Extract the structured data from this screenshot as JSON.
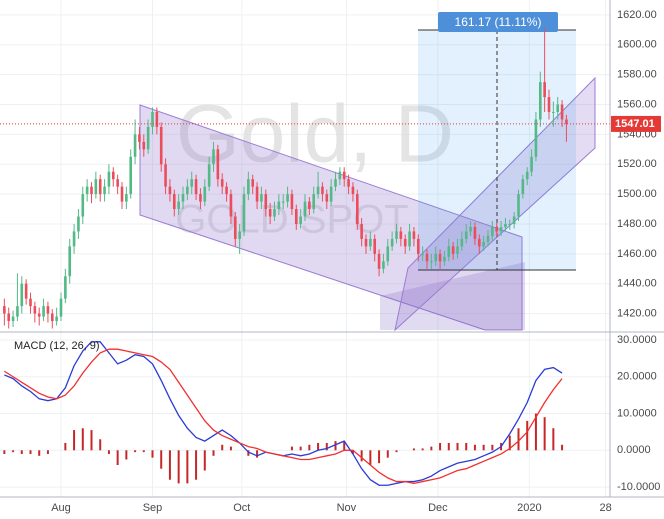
{
  "chart_data": [
    {
      "type": "candlestick",
      "title": "Gold, D",
      "subtitle": "GOLD SPOT",
      "annotation": "161.17 (11.11%)",
      "up_color": "#53b987",
      "down_color": "#eb4d5c",
      "last_price": 1547.01,
      "last_price_color": "#e53935",
      "xlim": [
        -1,
        139
      ],
      "xticks": [
        {
          "value": 13,
          "label": "Aug"
        },
        {
          "value": 34,
          "label": "Sep"
        },
        {
          "value": 54.5,
          "label": "Oct"
        },
        {
          "value": 78.5,
          "label": "Nov"
        },
        {
          "value": 99.5,
          "label": "Dec"
        },
        {
          "value": 120.5,
          "label": "2020"
        },
        {
          "value": 138,
          "label": "28"
        }
      ],
      "ylim": [
        1409,
        1630
      ],
      "yticks": [
        {
          "value": 1420,
          "label": "1420.00"
        },
        {
          "value": 1440,
          "label": "1440.00"
        },
        {
          "value": 1460,
          "label": "1460.00"
        },
        {
          "value": 1480,
          "label": "1480.00"
        },
        {
          "value": 1500,
          "label": "1500.00"
        },
        {
          "value": 1520,
          "label": "1520.00"
        },
        {
          "value": 1540,
          "label": "1540.00"
        },
        {
          "value": 1560,
          "label": "1560.00"
        },
        {
          "value": 1580,
          "label": "1580.00"
        },
        {
          "value": 1600,
          "label": "1600.00"
        },
        {
          "value": 1620,
          "label": "1620.00"
        }
      ],
      "grid": true,
      "ohlc": [
        [
          1425,
          1430,
          1412,
          1420
        ],
        [
          1420,
          1424,
          1410,
          1415
        ],
        [
          1415,
          1422,
          1411,
          1418
        ],
        [
          1418,
          1447,
          1415,
          1425
        ],
        [
          1425,
          1445,
          1420,
          1440
        ],
        [
          1440,
          1443,
          1426,
          1430
        ],
        [
          1430,
          1434,
          1420,
          1425
        ],
        [
          1425,
          1428,
          1414,
          1420
        ],
        [
          1420,
          1424,
          1412,
          1418
        ],
        [
          1418,
          1430,
          1415,
          1425
        ],
        [
          1425,
          1428,
          1414,
          1420
        ],
        [
          1420,
          1423,
          1410,
          1415
        ],
        [
          1415,
          1424,
          1412,
          1418
        ],
        [
          1418,
          1434,
          1415,
          1430
        ],
        [
          1430,
          1450,
          1427,
          1445
        ],
        [
          1445,
          1470,
          1440,
          1465
        ],
        [
          1465,
          1480,
          1460,
          1475
        ],
        [
          1475,
          1490,
          1470,
          1485
        ],
        [
          1485,
          1505,
          1480,
          1500
        ],
        [
          1500,
          1510,
          1495,
          1505
        ],
        [
          1505,
          1508,
          1494,
          1500
        ],
        [
          1500,
          1515,
          1497,
          1510
        ],
        [
          1510,
          1513,
          1495,
          1500
        ],
        [
          1500,
          1510,
          1495,
          1505
        ],
        [
          1505,
          1520,
          1500,
          1515
        ],
        [
          1515,
          1518,
          1505,
          1510
        ],
        [
          1510,
          1513,
          1500,
          1505
        ],
        [
          1505,
          1508,
          1490,
          1495
        ],
        [
          1495,
          1505,
          1490,
          1500
        ],
        [
          1500,
          1530,
          1497,
          1525
        ],
        [
          1525,
          1550,
          1520,
          1540
        ],
        [
          1540,
          1545,
          1530,
          1535
        ],
        [
          1535,
          1540,
          1525,
          1530
        ],
        [
          1530,
          1550,
          1527,
          1545
        ],
        [
          1545,
          1558,
          1540,
          1555
        ],
        [
          1555,
          1558,
          1540,
          1545
        ],
        [
          1545,
          1548,
          1515,
          1520
        ],
        [
          1520,
          1524,
          1500,
          1505
        ],
        [
          1505,
          1510,
          1495,
          1500
        ],
        [
          1500,
          1503,
          1485,
          1490
        ],
        [
          1490,
          1500,
          1486,
          1495
        ],
        [
          1495,
          1505,
          1490,
          1500
        ],
        [
          1500,
          1510,
          1496,
          1505
        ],
        [
          1505,
          1515,
          1500,
          1510
        ],
        [
          1510,
          1513,
          1496,
          1500
        ],
        [
          1500,
          1504,
          1490,
          1495
        ],
        [
          1495,
          1510,
          1492,
          1505
        ],
        [
          1505,
          1525,
          1502,
          1520
        ],
        [
          1520,
          1535,
          1515,
          1530
        ],
        [
          1530,
          1533,
          1505,
          1510
        ],
        [
          1510,
          1514,
          1500,
          1505
        ],
        [
          1505,
          1508,
          1495,
          1500
        ],
        [
          1500,
          1503,
          1480,
          1485
        ],
        [
          1485,
          1488,
          1465,
          1470
        ],
        [
          1470,
          1480,
          1460,
          1475
        ],
        [
          1475,
          1505,
          1472,
          1500
        ],
        [
          1500,
          1515,
          1496,
          1510
        ],
        [
          1510,
          1513,
          1500,
          1505
        ],
        [
          1505,
          1508,
          1490,
          1495
        ],
        [
          1495,
          1505,
          1490,
          1500
        ],
        [
          1500,
          1503,
          1485,
          1490
        ],
        [
          1490,
          1494,
          1480,
          1485
        ],
        [
          1485,
          1495,
          1482,
          1490
        ],
        [
          1490,
          1500,
          1486,
          1495
        ],
        [
          1495,
          1500,
          1490,
          1495
        ],
        [
          1495,
          1505,
          1491,
          1500
        ],
        [
          1500,
          1503,
          1486,
          1490
        ],
        [
          1490,
          1493,
          1476,
          1480
        ],
        [
          1480,
          1490,
          1477,
          1485
        ],
        [
          1485,
          1500,
          1482,
          1495
        ],
        [
          1495,
          1498,
          1486,
          1490
        ],
        [
          1490,
          1505,
          1487,
          1500
        ],
        [
          1500,
          1515,
          1497,
          1505
        ],
        [
          1505,
          1508,
          1495,
          1500
        ],
        [
          1500,
          1503,
          1490,
          1495
        ],
        [
          1495,
          1510,
          1492,
          1505
        ],
        [
          1505,
          1515,
          1502,
          1510
        ],
        [
          1510,
          1518,
          1506,
          1515
        ],
        [
          1515,
          1518,
          1505,
          1510
        ],
        [
          1510,
          1513,
          1500,
          1505
        ],
        [
          1505,
          1508,
          1495,
          1500
        ],
        [
          1500,
          1503,
          1476,
          1480
        ],
        [
          1480,
          1484,
          1465,
          1470
        ],
        [
          1470,
          1473,
          1460,
          1465
        ],
        [
          1465,
          1475,
          1462,
          1470
        ],
        [
          1470,
          1473,
          1455,
          1460
        ],
        [
          1460,
          1463,
          1445,
          1450
        ],
        [
          1450,
          1460,
          1447,
          1455
        ],
        [
          1455,
          1470,
          1452,
          1465
        ],
        [
          1465,
          1475,
          1462,
          1470
        ],
        [
          1470,
          1480,
          1467,
          1475
        ],
        [
          1475,
          1478,
          1465,
          1470
        ],
        [
          1470,
          1473,
          1460,
          1465
        ],
        [
          1465,
          1480,
          1462,
          1475
        ],
        [
          1475,
          1478,
          1465,
          1470
        ],
        [
          1470,
          1473,
          1455,
          1460
        ],
        [
          1460,
          1465,
          1455,
          1460
        ],
        [
          1460,
          1463,
          1450,
          1455
        ],
        [
          1455,
          1460,
          1450,
          1455
        ],
        [
          1455,
          1465,
          1452,
          1460
        ],
        [
          1460,
          1463,
          1450,
          1455
        ],
        [
          1455,
          1462,
          1452,
          1458
        ],
        [
          1458,
          1470,
          1455,
          1465
        ],
        [
          1465,
          1468,
          1456,
          1460
        ],
        [
          1460,
          1470,
          1457,
          1465
        ],
        [
          1465,
          1475,
          1462,
          1470
        ],
        [
          1470,
          1480,
          1467,
          1475
        ],
        [
          1475,
          1482,
          1472,
          1478
        ],
        [
          1478,
          1481,
          1466,
          1470
        ],
        [
          1470,
          1473,
          1460,
          1465
        ],
        [
          1465,
          1472,
          1462,
          1468
        ],
        [
          1468,
          1476,
          1465,
          1472
        ],
        [
          1472,
          1482,
          1469,
          1478
        ],
        [
          1478,
          1481,
          1471,
          1475
        ],
        [
          1475,
          1482,
          1472,
          1478
        ],
        [
          1478,
          1484,
          1475,
          1480
        ],
        [
          1480,
          1483,
          1476,
          1480
        ],
        [
          1480,
          1488,
          1477,
          1485
        ],
        [
          1485,
          1503,
          1482,
          1500
        ],
        [
          1500,
          1513,
          1497,
          1510
        ],
        [
          1510,
          1518,
          1506,
          1515
        ],
        [
          1515,
          1530,
          1512,
          1525
        ],
        [
          1525,
          1555,
          1522,
          1550
        ],
        [
          1550,
          1582,
          1545,
          1575
        ],
        [
          1575,
          1611,
          1555,
          1565
        ],
        [
          1565,
          1570,
          1550,
          1555
        ],
        [
          1555,
          1562,
          1545,
          1555
        ],
        [
          1555,
          1565,
          1550,
          1560
        ],
        [
          1560,
          1563,
          1545,
          1550
        ],
        [
          1550,
          1553,
          1535,
          1547
        ]
      ]
    },
    {
      "type": "macd",
      "title": "MACD (12, 26, 9)",
      "ylim": [
        -12.7,
        31.9
      ],
      "yticks": [
        {
          "value": 30,
          "label": "30.0000"
        },
        {
          "value": 20,
          "label": "20.0000"
        },
        {
          "value": 10,
          "label": "10.0000"
        },
        {
          "value": 0,
          "label": "0.0000"
        },
        {
          "value": -10,
          "label": "-10.0000"
        }
      ],
      "x": [
        0,
        2,
        4,
        6,
        8,
        10,
        12,
        14,
        16,
        18,
        20,
        22,
        24,
        26,
        28,
        30,
        32,
        34,
        36,
        38,
        40,
        42,
        44,
        46,
        48,
        50,
        52,
        54,
        56,
        58,
        60,
        62,
        64,
        66,
        68,
        70,
        72,
        74,
        76,
        78,
        80,
        82,
        84,
        86,
        88,
        90,
        92,
        94,
        96,
        98,
        100,
        102,
        104,
        106,
        108,
        110,
        112,
        114,
        116,
        118,
        120,
        122,
        124,
        126,
        128
      ],
      "series": [
        {
          "color": "#2b3bd6",
          "values": [
            20.5,
            19.5,
            17.5,
            16,
            14,
            13.5,
            14,
            17,
            23,
            27,
            29.5,
            29.5,
            26.5,
            23.5,
            24.5,
            26,
            25.5,
            23.5,
            19,
            14,
            9.5,
            6,
            3.5,
            2.5,
            4,
            5.5,
            4,
            2,
            -0.5,
            -1.5,
            -0.5,
            -1,
            -1.5,
            -1,
            -1.5,
            -1,
            0,
            0.5,
            1.5,
            2.5,
            -1,
            -5,
            -8,
            -9.5,
            -9.5,
            -9,
            -8.5,
            -8.5,
            -8,
            -7,
            -5.5,
            -4.5,
            -3.5,
            -3,
            -2.5,
            -1.5,
            -0.5,
            1,
            4.5,
            8.5,
            13,
            19,
            22,
            22.5,
            21
          ]
        },
        {
          "color": "#f0312f",
          "values": [
            21.5,
            20,
            18.5,
            17,
            15.5,
            14.5,
            14,
            15,
            17.5,
            21,
            24,
            26.5,
            27.5,
            27.5,
            27,
            26.5,
            26,
            25.5,
            24,
            22,
            18.5,
            15,
            11.5,
            8,
            5.5,
            4,
            3,
            2,
            1,
            0.5,
            -0.5,
            -1,
            -1.5,
            -2,
            -2.5,
            -2.5,
            -2,
            -1.5,
            -1,
            0,
            0,
            -2,
            -4,
            -6,
            -7.5,
            -8.5,
            -8.5,
            -9,
            -8.5,
            -8,
            -7.5,
            -6.5,
            -5.5,
            -5,
            -4,
            -3,
            -2,
            -1,
            0.5,
            2.5,
            5,
            9,
            13,
            16.5,
            19.5
          ]
        }
      ],
      "histogram": {
        "color": "#c62828",
        "values": [
          -1,
          -0.5,
          -1,
          -1,
          -1.5,
          -1,
          0,
          2,
          5.5,
          6,
          5.5,
          3,
          -1,
          -4,
          -2.5,
          -0.5,
          -0.5,
          -2,
          -5,
          -8,
          -9,
          -9,
          -8,
          -5.5,
          -1.5,
          1.5,
          1,
          0,
          -1.5,
          -2,
          0,
          0,
          0,
          1,
          1,
          1.5,
          2,
          2,
          2.5,
          2.5,
          -1,
          -3,
          -4,
          -3.5,
          -2,
          -0.5,
          0,
          0.5,
          0.5,
          1,
          2,
          2,
          2,
          2,
          1.5,
          1.5,
          1.5,
          2,
          4,
          6,
          8,
          10,
          9,
          6,
          1.5
        ]
      }
    }
  ]
}
